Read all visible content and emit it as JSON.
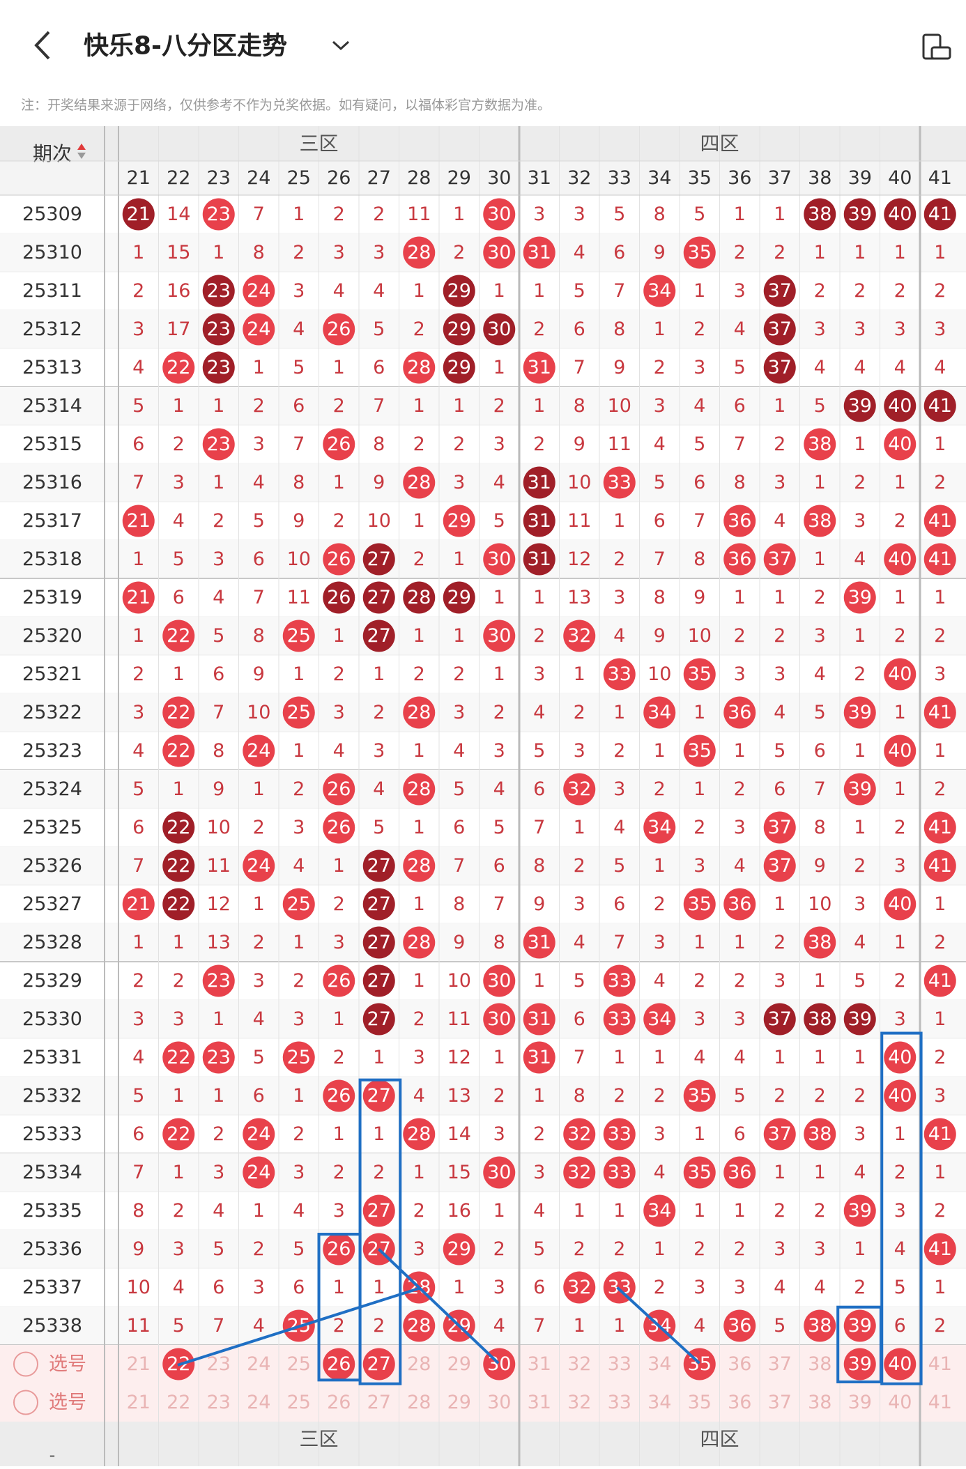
{
  "header": {
    "title": "快乐8-八分区走势",
    "note": "注：开奖结果来源于网络，仅供参考不作为兑奖依据。如有疑问，以福体彩官方数据为准。"
  },
  "table": {
    "period_header": "期次",
    "zones": [
      "三区",
      "四区"
    ],
    "columns": [
      21,
      22,
      23,
      24,
      25,
      26,
      27,
      28,
      29,
      30,
      31,
      32,
      33,
      34,
      35,
      36,
      37,
      38,
      39,
      40,
      41
    ],
    "rows": [
      {
        "period": 25309,
        "cells": [
          21,
          14,
          23,
          7,
          1,
          2,
          2,
          11,
          1,
          30,
          3,
          3,
          5,
          8,
          5,
          1,
          1,
          38,
          39,
          40,
          41
        ],
        "dark": [
          21,
          38,
          39,
          40,
          41
        ]
      },
      {
        "period": 25310,
        "cells": [
          1,
          15,
          1,
          8,
          2,
          3,
          3,
          28,
          2,
          30,
          31,
          4,
          6,
          9,
          35,
          2,
          2,
          1,
          1,
          1,
          1
        ],
        "dark": []
      },
      {
        "period": 25311,
        "cells": [
          2,
          16,
          23,
          24,
          3,
          4,
          4,
          1,
          29,
          1,
          1,
          5,
          7,
          34,
          1,
          3,
          37,
          2,
          2,
          2,
          2
        ],
        "dark": [
          23,
          29,
          37
        ]
      },
      {
        "period": 25312,
        "cells": [
          3,
          17,
          23,
          24,
          4,
          26,
          5,
          2,
          29,
          30,
          2,
          6,
          8,
          1,
          2,
          4,
          37,
          3,
          3,
          3,
          3
        ],
        "dark": [
          23,
          29,
          30,
          37
        ]
      },
      {
        "period": 25313,
        "cells": [
          4,
          22,
          23,
          1,
          5,
          1,
          6,
          28,
          29,
          1,
          31,
          7,
          9,
          2,
          3,
          5,
          37,
          4,
          4,
          4,
          4
        ],
        "dark": [
          23,
          29,
          37
        ]
      },
      {
        "period": 25314,
        "cells": [
          5,
          1,
          1,
          2,
          6,
          2,
          7,
          1,
          1,
          2,
          1,
          8,
          10,
          3,
          4,
          6,
          1,
          5,
          39,
          40,
          41
        ],
        "dark": [
          39,
          40,
          41
        ]
      },
      {
        "period": 25315,
        "cells": [
          6,
          2,
          23,
          3,
          7,
          26,
          8,
          2,
          2,
          3,
          2,
          9,
          11,
          4,
          5,
          7,
          2,
          38,
          1,
          40,
          1
        ],
        "dark": []
      },
      {
        "period": 25316,
        "cells": [
          7,
          3,
          1,
          4,
          8,
          1,
          9,
          28,
          3,
          4,
          31,
          10,
          33,
          5,
          6,
          8,
          3,
          1,
          2,
          1,
          2
        ],
        "dark": [
          31
        ]
      },
      {
        "period": 25317,
        "cells": [
          21,
          4,
          2,
          5,
          9,
          2,
          10,
          1,
          29,
          5,
          31,
          11,
          1,
          6,
          7,
          36,
          4,
          38,
          3,
          2,
          41
        ],
        "dark": [
          31
        ]
      },
      {
        "period": 25318,
        "cells": [
          1,
          5,
          3,
          6,
          10,
          26,
          27,
          2,
          1,
          30,
          31,
          12,
          2,
          7,
          8,
          36,
          37,
          1,
          4,
          40,
          41
        ],
        "dark": [
          27,
          31
        ]
      },
      {
        "period": 25319,
        "cells": [
          21,
          6,
          4,
          7,
          11,
          26,
          27,
          28,
          29,
          1,
          1,
          13,
          3,
          8,
          9,
          1,
          1,
          2,
          39,
          1,
          1
        ],
        "dark": [
          26,
          27,
          28,
          29
        ]
      },
      {
        "period": 25320,
        "cells": [
          1,
          22,
          5,
          8,
          25,
          1,
          27,
          1,
          1,
          30,
          2,
          32,
          4,
          9,
          10,
          2,
          2,
          3,
          1,
          2,
          2
        ],
        "dark": [
          27
        ]
      },
      {
        "period": 25321,
        "cells": [
          2,
          1,
          6,
          9,
          1,
          2,
          1,
          2,
          2,
          1,
          3,
          1,
          33,
          10,
          35,
          3,
          3,
          4,
          2,
          40,
          3
        ],
        "dark": []
      },
      {
        "period": 25322,
        "cells": [
          3,
          22,
          7,
          10,
          25,
          3,
          2,
          28,
          3,
          2,
          4,
          2,
          1,
          34,
          1,
          36,
          4,
          5,
          39,
          1,
          41
        ],
        "dark": []
      },
      {
        "period": 25323,
        "cells": [
          4,
          22,
          8,
          24,
          1,
          4,
          3,
          1,
          4,
          3,
          5,
          3,
          2,
          1,
          35,
          1,
          5,
          6,
          1,
          40,
          1
        ],
        "dark": []
      },
      {
        "period": 25324,
        "cells": [
          5,
          1,
          9,
          1,
          2,
          26,
          4,
          28,
          5,
          4,
          6,
          32,
          3,
          2,
          1,
          2,
          6,
          7,
          39,
          1,
          2
        ],
        "dark": []
      },
      {
        "period": 25325,
        "cells": [
          6,
          22,
          10,
          2,
          3,
          26,
          5,
          1,
          6,
          5,
          7,
          1,
          4,
          34,
          2,
          3,
          37,
          8,
          1,
          2,
          41
        ],
        "dark": [
          22
        ]
      },
      {
        "period": 25326,
        "cells": [
          7,
          22,
          11,
          24,
          4,
          1,
          27,
          28,
          7,
          6,
          8,
          2,
          5,
          1,
          3,
          4,
          37,
          9,
          2,
          3,
          41
        ],
        "dark": [
          22,
          27
        ]
      },
      {
        "period": 25327,
        "cells": [
          21,
          22,
          12,
          1,
          25,
          2,
          27,
          1,
          8,
          7,
          9,
          3,
          6,
          2,
          35,
          36,
          1,
          10,
          3,
          40,
          1
        ],
        "dark": [
          22,
          27
        ]
      },
      {
        "period": 25328,
        "cells": [
          1,
          1,
          13,
          2,
          1,
          3,
          27,
          28,
          9,
          8,
          31,
          4,
          7,
          3,
          1,
          1,
          2,
          38,
          4,
          1,
          2
        ],
        "dark": [
          27
        ]
      },
      {
        "period": 25329,
        "cells": [
          2,
          2,
          23,
          3,
          2,
          26,
          27,
          1,
          10,
          30,
          1,
          5,
          33,
          4,
          2,
          2,
          3,
          1,
          5,
          2,
          41
        ],
        "dark": [
          27
        ]
      },
      {
        "period": 25330,
        "cells": [
          3,
          3,
          1,
          4,
          3,
          1,
          27,
          2,
          11,
          30,
          31,
          6,
          33,
          34,
          3,
          3,
          37,
          38,
          39,
          3,
          1
        ],
        "dark": [
          27,
          37,
          38,
          39
        ]
      },
      {
        "period": 25331,
        "cells": [
          4,
          22,
          23,
          5,
          25,
          2,
          1,
          3,
          12,
          1,
          31,
          7,
          1,
          1,
          4,
          4,
          1,
          1,
          1,
          40,
          2
        ],
        "dark": []
      },
      {
        "period": 25332,
        "cells": [
          5,
          1,
          1,
          6,
          1,
          26,
          27,
          4,
          13,
          2,
          1,
          8,
          2,
          2,
          35,
          5,
          2,
          2,
          2,
          40,
          3
        ],
        "dark": []
      },
      {
        "period": 25333,
        "cells": [
          6,
          22,
          2,
          24,
          2,
          1,
          1,
          28,
          14,
          3,
          2,
          32,
          33,
          3,
          1,
          6,
          37,
          38,
          3,
          1,
          41
        ],
        "dark": []
      },
      {
        "period": 25334,
        "cells": [
          7,
          1,
          3,
          24,
          3,
          2,
          2,
          1,
          15,
          30,
          3,
          32,
          33,
          4,
          35,
          36,
          1,
          1,
          4,
          2,
          1
        ],
        "dark": []
      },
      {
        "period": 25335,
        "cells": [
          8,
          2,
          4,
          1,
          4,
          3,
          27,
          2,
          16,
          1,
          4,
          1,
          1,
          34,
          1,
          1,
          2,
          2,
          39,
          3,
          2
        ],
        "dark": []
      },
      {
        "period": 25336,
        "cells": [
          9,
          3,
          5,
          2,
          5,
          26,
          27,
          3,
          29,
          2,
          5,
          2,
          2,
          1,
          2,
          2,
          3,
          3,
          1,
          4,
          41
        ],
        "dark": []
      },
      {
        "period": 25337,
        "cells": [
          10,
          4,
          6,
          3,
          6,
          1,
          1,
          28,
          1,
          3,
          6,
          32,
          33,
          2,
          3,
          3,
          4,
          4,
          2,
          5,
          1
        ],
        "dark": []
      },
      {
        "period": 25338,
        "cells": [
          11,
          5,
          7,
          4,
          25,
          2,
          2,
          28,
          29,
          4,
          7,
          1,
          1,
          34,
          4,
          36,
          5,
          38,
          39,
          6,
          2
        ],
        "dark": []
      }
    ],
    "picks": [
      {
        "label": "选号",
        "numbers": [
          21,
          22,
          23,
          24,
          25,
          26,
          27,
          28,
          29,
          30,
          31,
          32,
          33,
          34,
          35,
          36,
          37,
          38,
          39,
          40,
          41
        ],
        "selected": [
          22,
          26,
          27,
          30,
          35,
          39,
          40
        ]
      },
      {
        "label": "选号",
        "numbers": [
          21,
          22,
          23,
          24,
          25,
          26,
          27,
          28,
          29,
          30,
          31,
          32,
          33,
          34,
          35,
          36,
          37,
          38,
          39,
          40,
          41
        ],
        "selected": []
      }
    ],
    "footer_zones": [
      "三区",
      "四区"
    ],
    "footer_period": "-"
  }
}
